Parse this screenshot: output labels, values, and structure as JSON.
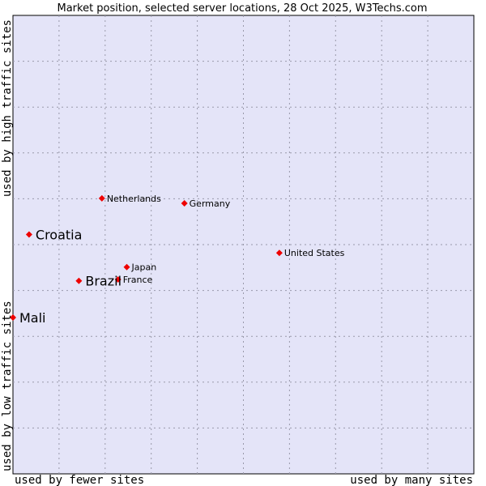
{
  "chart_data": {
    "type": "scatter",
    "title": "Market position, selected server locations, 28 Oct 2025, W3Techs.com",
    "xlabel_left": "used by fewer sites",
    "xlabel_right": "used by many sites",
    "ylabel_bottom": "used by low traffic sites",
    "ylabel_top": "used by high traffic sites",
    "grid": true,
    "colors": {
      "plot_bg": "#e4e4f8",
      "point": "#ee0000",
      "frame": "#000000"
    },
    "points": [
      {
        "name": "Netherlands",
        "x": 0.193,
        "y": 0.601,
        "highlight": false
      },
      {
        "name": "Germany",
        "x": 0.372,
        "y": 0.59,
        "highlight": false
      },
      {
        "name": "Croatia",
        "x": 0.035,
        "y": 0.522,
        "highlight": true
      },
      {
        "name": "United States",
        "x": 0.578,
        "y": 0.482,
        "highlight": false
      },
      {
        "name": "Japan",
        "x": 0.247,
        "y": 0.451,
        "highlight": false
      },
      {
        "name": "France",
        "x": 0.228,
        "y": 0.424,
        "highlight": false
      },
      {
        "name": "Brazil",
        "x": 0.143,
        "y": 0.421,
        "highlight": true
      },
      {
        "name": "Mali",
        "x": 0.0,
        "y": 0.341,
        "highlight": true
      }
    ]
  }
}
